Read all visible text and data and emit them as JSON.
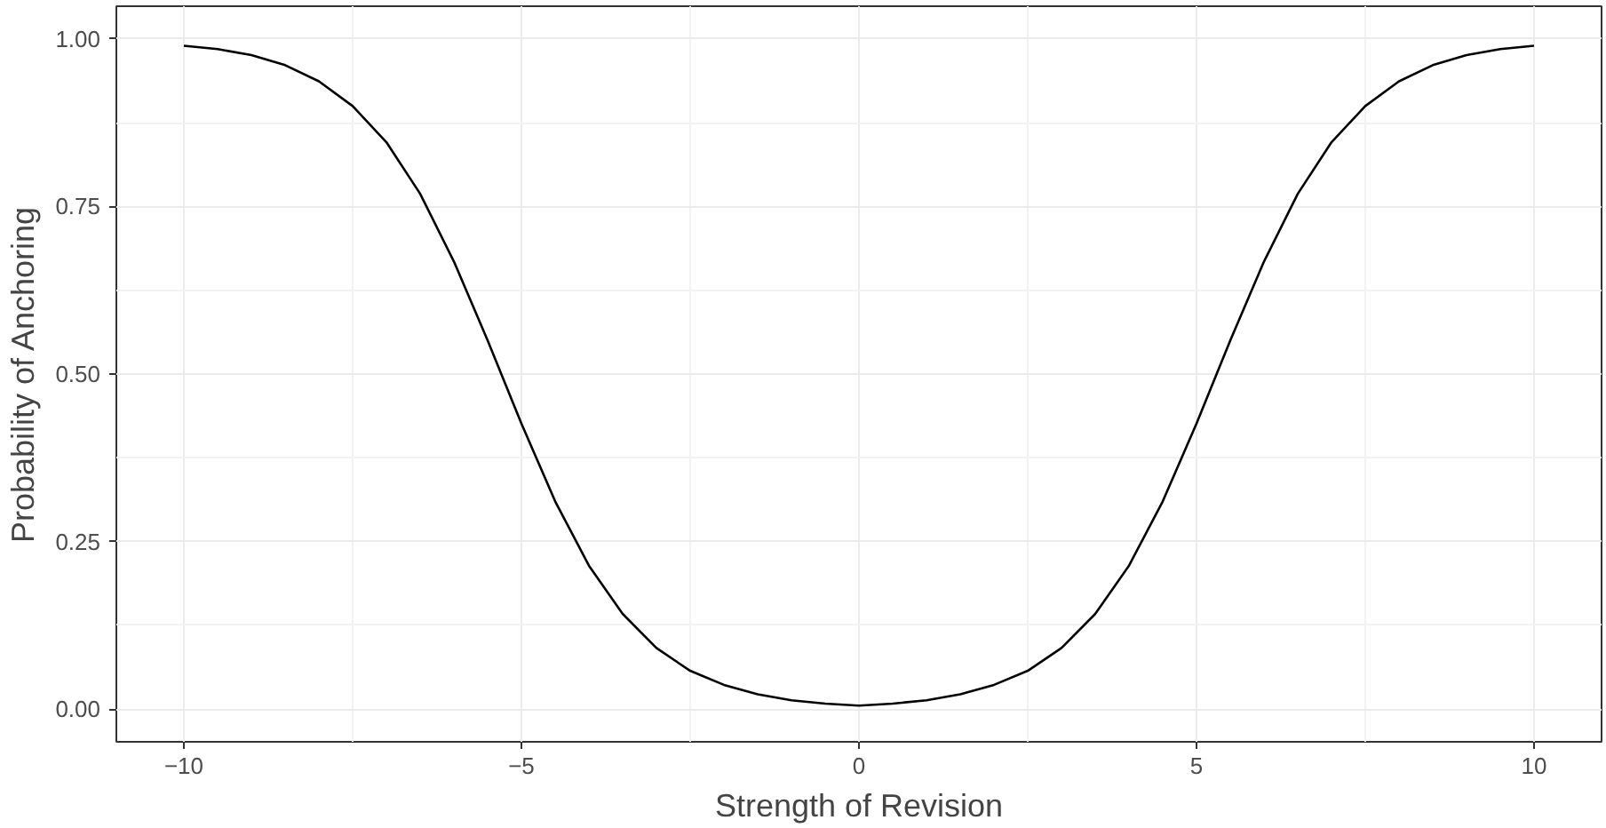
{
  "chart_data": {
    "type": "line",
    "xlabel": "Strength of Revision",
    "ylabel": "Probability of Anchoring",
    "x": [
      -10,
      -9.5,
      -9,
      -8.5,
      -8,
      -7.5,
      -7,
      -6.5,
      -6,
      -5.5,
      -5,
      -4.5,
      -4,
      -3.5,
      -3,
      -2.5,
      -2,
      -1.5,
      -1,
      -0.5,
      0,
      0.5,
      1,
      1.5,
      2,
      2.5,
      3,
      3.5,
      4,
      4.5,
      5,
      5.5,
      6,
      6.5,
      7,
      7.5,
      8,
      8.5,
      9,
      9.5,
      10
    ],
    "series": [
      {
        "color": "#000000",
        "values": [
          0.99,
          0.985,
          0.976,
          0.961,
          0.937,
          0.9,
          0.846,
          0.769,
          0.668,
          0.55,
          0.426,
          0.31,
          0.214,
          0.142,
          0.091,
          0.057,
          0.036,
          0.022,
          0.013,
          0.008,
          0.005,
          0.008,
          0.013,
          0.022,
          0.036,
          0.057,
          0.091,
          0.142,
          0.214,
          0.31,
          0.426,
          0.55,
          0.668,
          0.769,
          0.846,
          0.9,
          0.937,
          0.961,
          0.976,
          0.985,
          0.99
        ]
      }
    ],
    "xlim": [
      -11,
      11
    ],
    "ylim": [
      -0.049,
      1.049
    ],
    "xticks": [
      {
        "value": -10,
        "label": "−10"
      },
      {
        "value": -5,
        "label": "−5"
      },
      0,
      5,
      10
    ],
    "yticks": [
      {
        "value": 0,
        "label": "0.00"
      },
      {
        "value": 0.25,
        "label": "0.25"
      },
      {
        "value": 0.5,
        "label": "0.50"
      },
      {
        "value": 0.75,
        "label": "0.75"
      },
      {
        "value": 1,
        "label": "1.00"
      }
    ],
    "grid": true,
    "line_style": "solid",
    "marker": "none"
  }
}
